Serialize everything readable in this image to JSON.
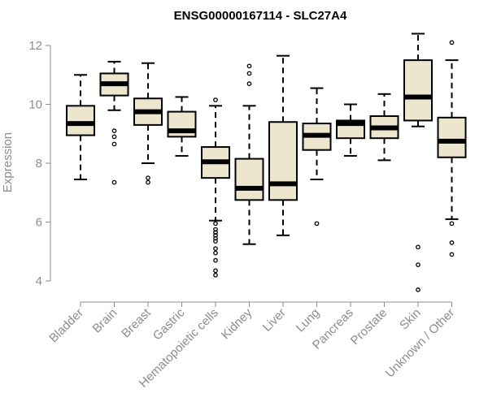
{
  "chart_data": {
    "type": "boxplot",
    "title": "ENSG00000167114 - SLC27A4",
    "xlabel": "",
    "ylabel": "Expression",
    "ylim": [
      3.6,
      12.5
    ],
    "yticks": [
      4,
      6,
      8,
      10,
      12
    ],
    "box_fill": "#ede6cf",
    "stroke": "#000000",
    "axis_color": "#8c8c8c",
    "categories": [
      "Bladder",
      "Brain",
      "Breast",
      "Gastric",
      "Hematopoietic cells",
      "Kidney",
      "Liver",
      "Lung",
      "Pancreas",
      "Prostate",
      "Skin",
      "Unknown / Other"
    ],
    "boxes": [
      {
        "name": "Bladder",
        "whisker_low": 7.45,
        "q1": 8.95,
        "median": 9.35,
        "q3": 9.95,
        "whisker_high": 11.0,
        "outliers": []
      },
      {
        "name": "Brain",
        "whisker_low": 9.8,
        "q1": 10.3,
        "median": 10.7,
        "q3": 11.05,
        "whisker_high": 11.45,
        "outliers": [
          7.35,
          8.65,
          8.9,
          9.1
        ]
      },
      {
        "name": "Breast",
        "whisker_low": 8.0,
        "q1": 9.3,
        "median": 9.75,
        "q3": 10.2,
        "whisker_high": 11.4,
        "outliers": [
          7.35,
          7.5
        ]
      },
      {
        "name": "Gastric",
        "whisker_low": 8.25,
        "q1": 8.9,
        "median": 9.1,
        "q3": 9.75,
        "whisker_high": 10.25,
        "outliers": []
      },
      {
        "name": "Hematopoietic cells",
        "whisker_low": 6.05,
        "q1": 7.5,
        "median": 8.05,
        "q3": 8.55,
        "whisker_high": 9.95,
        "outliers": [
          10.15,
          5.95,
          5.75,
          5.65,
          5.55,
          5.45,
          5.35,
          5.1,
          4.95,
          4.7,
          4.35,
          4.2
        ]
      },
      {
        "name": "Kidney",
        "whisker_low": 5.25,
        "q1": 6.75,
        "median": 7.15,
        "q3": 8.15,
        "whisker_high": 9.95,
        "outliers": [
          10.7,
          11.05,
          11.3
        ]
      },
      {
        "name": "Liver",
        "whisker_low": 5.55,
        "q1": 6.75,
        "median": 7.3,
        "q3": 9.4,
        "whisker_high": 11.65,
        "outliers": []
      },
      {
        "name": "Lung",
        "whisker_low": 7.45,
        "q1": 8.45,
        "median": 8.95,
        "q3": 9.35,
        "whisker_high": 10.55,
        "outliers": [
          5.95
        ]
      },
      {
        "name": "Pancreas",
        "whisker_low": 8.25,
        "q1": 8.85,
        "median": 9.35,
        "q3": 9.45,
        "whisker_high": 10.0,
        "outliers": []
      },
      {
        "name": "Prostate",
        "whisker_low": 8.1,
        "q1": 8.85,
        "median": 9.2,
        "q3": 9.6,
        "whisker_high": 10.35,
        "outliers": []
      },
      {
        "name": "Skin",
        "whisker_low": 9.25,
        "q1": 9.45,
        "median": 10.25,
        "q3": 11.5,
        "whisker_high": 12.4,
        "outliers": [
          5.15,
          4.55,
          3.7
        ]
      },
      {
        "name": "Unknown / Other",
        "whisker_low": 6.1,
        "q1": 8.2,
        "median": 8.75,
        "q3": 9.55,
        "whisker_high": 11.5,
        "outliers": [
          12.1,
          5.95,
          5.3,
          4.9
        ]
      }
    ]
  }
}
